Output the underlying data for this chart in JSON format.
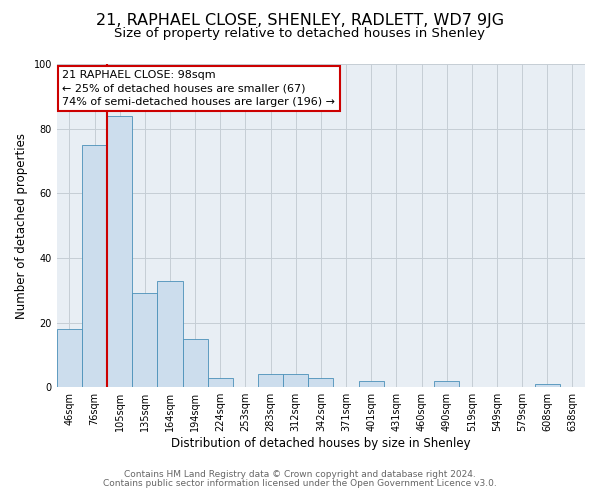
{
  "title": "21, RAPHAEL CLOSE, SHENLEY, RADLETT, WD7 9JG",
  "subtitle": "Size of property relative to detached houses in Shenley",
  "xlabel": "Distribution of detached houses by size in Shenley",
  "ylabel": "Number of detached properties",
  "footer_line1": "Contains HM Land Registry data © Crown copyright and database right 2024.",
  "footer_line2": "Contains public sector information licensed under the Open Government Licence v3.0.",
  "bin_labels": [
    "46sqm",
    "76sqm",
    "105sqm",
    "135sqm",
    "164sqm",
    "194sqm",
    "224sqm",
    "253sqm",
    "283sqm",
    "312sqm",
    "342sqm",
    "371sqm",
    "401sqm",
    "431sqm",
    "460sqm",
    "490sqm",
    "519sqm",
    "549sqm",
    "579sqm",
    "608sqm",
    "638sqm"
  ],
  "bar_heights": [
    18,
    75,
    84,
    29,
    33,
    15,
    3,
    0,
    4,
    4,
    3,
    0,
    2,
    0,
    0,
    2,
    0,
    0,
    0,
    1,
    0
  ],
  "bar_color": "#ccdded",
  "bar_edge_color": "#4a90b8",
  "property_line_color": "#cc0000",
  "annotation_text": "21 RAPHAEL CLOSE: 98sqm\n← 25% of detached houses are smaller (67)\n74% of semi-detached houses are larger (196) →",
  "annotation_box_color": "#ffffff",
  "annotation_box_edge_color": "#cc0000",
  "ylim": [
    0,
    100
  ],
  "background_color": "#ffffff",
  "plot_bg_color": "#e8eef4",
  "grid_color": "#c5cdd5",
  "title_fontsize": 11.5,
  "subtitle_fontsize": 9.5,
  "axis_label_fontsize": 8.5,
  "tick_fontsize": 7,
  "annotation_fontsize": 8,
  "footer_fontsize": 6.5
}
